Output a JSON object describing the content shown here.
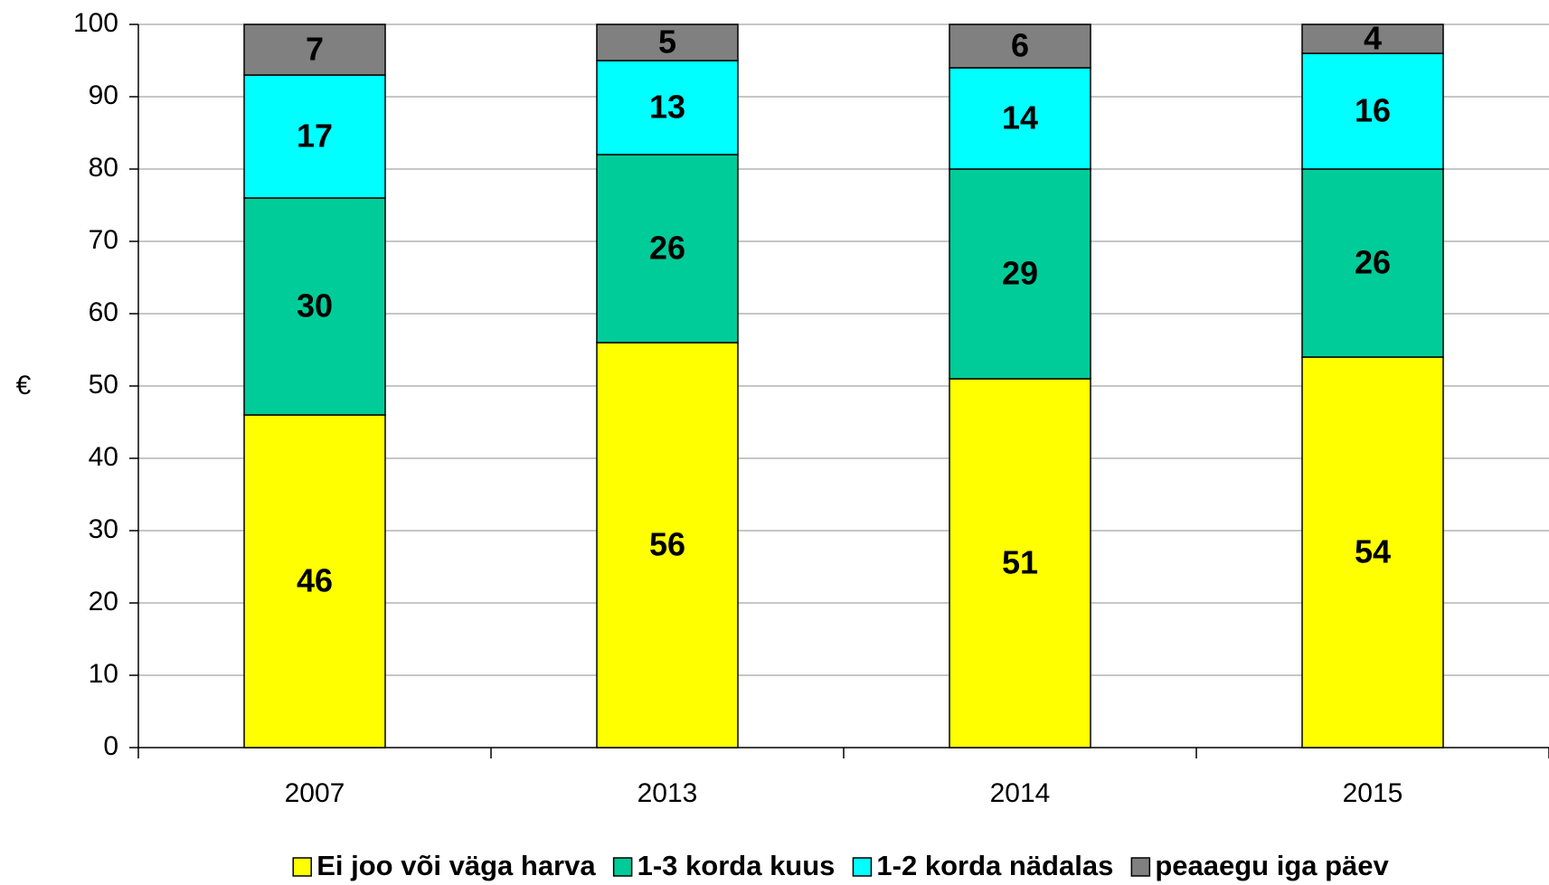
{
  "chart_data": {
    "type": "bar",
    "stacked": true,
    "y_label": "€",
    "categories": [
      "2007",
      "2013",
      "2014",
      "2015"
    ],
    "series": [
      {
        "name": "Ei joo või väga harva",
        "color": "#ffff00",
        "values": [
          46,
          56,
          51,
          54
        ]
      },
      {
        "name": "1-3 korda kuus",
        "color": "#00cc99",
        "values": [
          30,
          26,
          29,
          26
        ]
      },
      {
        "name": "1-2 korda nädalas",
        "color": "#00ffff",
        "values": [
          17,
          13,
          14,
          16
        ]
      },
      {
        "name": "peaaegu iga päev",
        "color": "#808080",
        "values": [
          7,
          5,
          6,
          4
        ]
      }
    ],
    "ylim": [
      0,
      100
    ],
    "yticks": [
      0,
      10,
      20,
      30,
      40,
      50,
      60,
      70,
      80,
      90,
      100
    ],
    "grid": true
  }
}
